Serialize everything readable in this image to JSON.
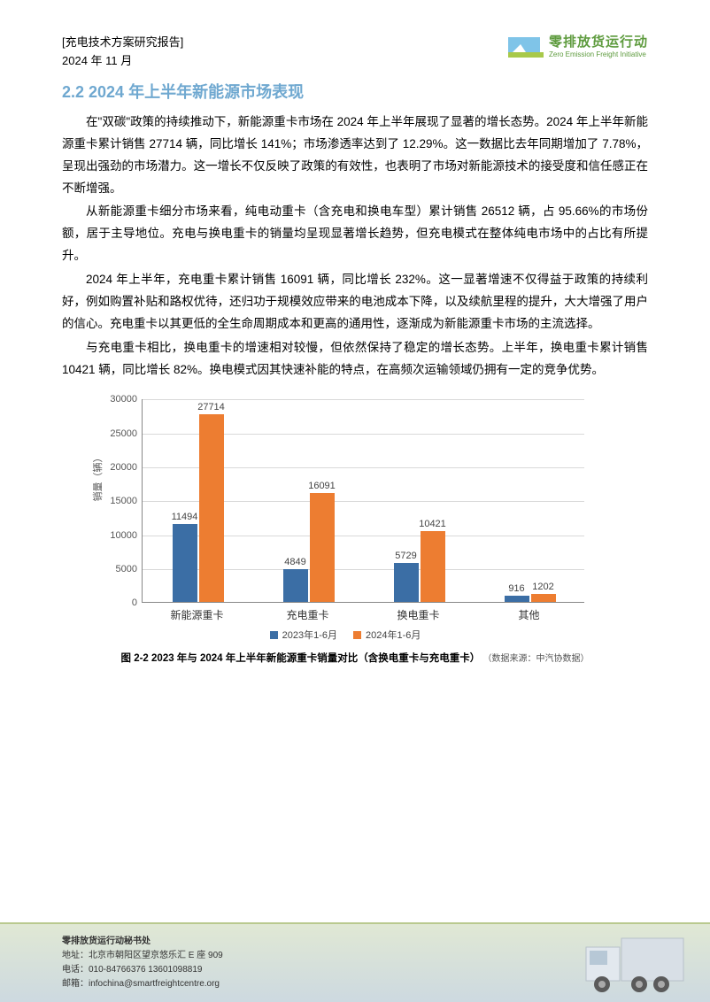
{
  "header": {
    "doc_type": "[充电技术方案研究报告]",
    "date": "2024 年 11 月",
    "logo_cn": "零排放货运行动",
    "logo_en": "Zero Emission Freight Initiative",
    "logo_accent_color": "#5e9b3e"
  },
  "section": {
    "heading": "2.2 2024 年上半年新能源市场表现",
    "heading_color": "#6fa8d0",
    "paragraphs": [
      "在\"双碳\"政策的持续推动下，新能源重卡市场在 2024 年上半年展现了显著的增长态势。2024 年上半年新能源重卡累计销售 27714 辆，同比增长 141%；市场渗透率达到了 12.29%。这一数据比去年同期增加了 7.78%，呈现出强劲的市场潜力。这一增长不仅反映了政策的有效性，也表明了市场对新能源技术的接受度和信任感正在不断增强。",
      "从新能源重卡细分市场来看，纯电动重卡（含充电和换电车型）累计销售 26512 辆，占 95.66%的市场份额，居于主导地位。充电与换电重卡的销量均呈现显著增长趋势，但充电模式在整体纯电市场中的占比有所提升。",
      "2024 年上半年，充电重卡累计销售 16091 辆，同比增长 232%。这一显著增速不仅得益于政策的持续利好，例如购置补贴和路权优待，还归功于规模效应带来的电池成本下降，以及续航里程的提升，大大增强了用户的信心。充电重卡以其更低的全生命周期成本和更高的通用性，逐渐成为新能源重卡市场的主流选择。",
      "与充电重卡相比，换电重卡的增速相对较慢，但依然保持了稳定的增长态势。上半年，换电重卡累计销售 10421 辆，同比增长 82%。换电模式因其快速补能的特点，在高频次运输领域仍拥有一定的竞争优势。"
    ]
  },
  "chart": {
    "type": "bar",
    "ylabel": "销量（辆）",
    "ylim_max": 30000,
    "ytick_step": 5000,
    "yticks": [
      "0",
      "5000",
      "10000",
      "15000",
      "20000",
      "25000",
      "30000"
    ],
    "categories": [
      "新能源重卡",
      "充电重卡",
      "换电重卡",
      "其他"
    ],
    "series": [
      {
        "name": "2023年1-6月",
        "color": "#3b6ea5",
        "values": [
          11494,
          4849,
          5729,
          916
        ]
      },
      {
        "name": "2024年1-6月",
        "color": "#ed7d31",
        "values": [
          27714,
          16091,
          10421,
          1202
        ]
      }
    ],
    "grid_color": "#d9d9d9",
    "axis_color": "#888888",
    "label_fontsize": 11,
    "caption": "图 2-2 2023 年与 2024 年上半年新能源重卡销量对比（含换电重卡与充电重卡）",
    "source": "（数据来源：中汽协数据）"
  },
  "footer": {
    "org": "零排放货运行动秘书处",
    "address_label": "地址：",
    "address": "北京市朝阳区望京悠乐汇 E 座 909",
    "phone_label": "电话：",
    "phone": "010-84766376 13601098819",
    "email_label": "邮箱：",
    "email": "infochina@smartfreightcentre.org",
    "bg_top": "#e0e8d4",
    "bg_bottom": "#cdd9e0"
  }
}
